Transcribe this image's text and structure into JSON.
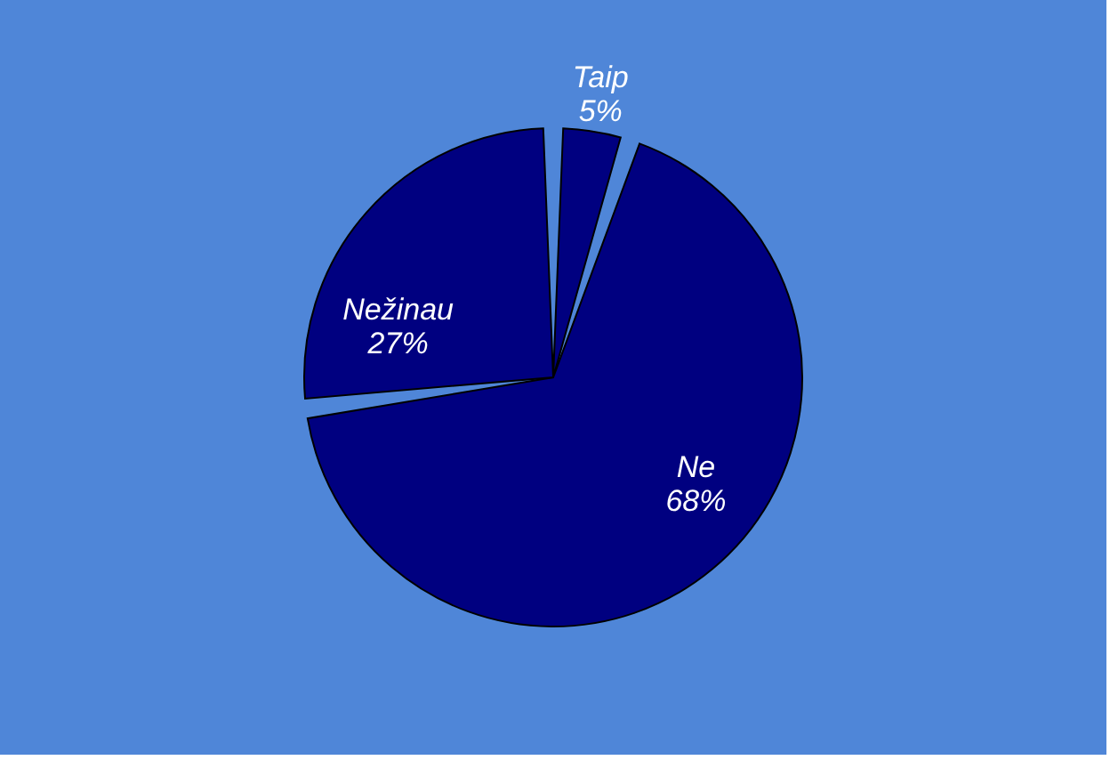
{
  "chart_data": {
    "type": "pie",
    "categories": [
      "Taip",
      "Ne",
      "Nežinau"
    ],
    "values": [
      5,
      68,
      27
    ],
    "colors": [
      "#000080",
      "#000080",
      "#000080"
    ],
    "value_labels": [
      "5%",
      "68%",
      "27%"
    ],
    "legend": false
  }
}
